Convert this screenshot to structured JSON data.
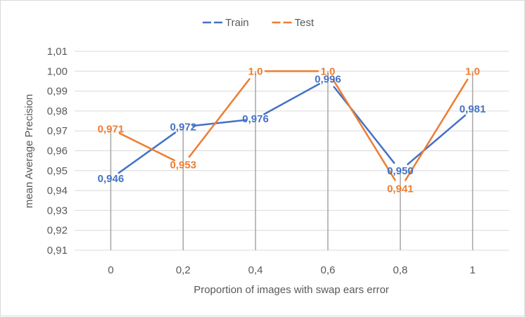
{
  "chart_data": {
    "type": "line",
    "categories": [
      "0",
      "0,2",
      "0,4",
      "0,6",
      "0,8",
      "1"
    ],
    "series": [
      {
        "name": "Train",
        "color": "#4472c4",
        "values": [
          0.946,
          0.972,
          0.976,
          0.996,
          0.95,
          0.981
        ],
        "labels": [
          "0,946",
          "0,972",
          "0,976",
          "0,996",
          "0,950",
          "0,981"
        ]
      },
      {
        "name": "Test",
        "color": "#ed7d31",
        "values": [
          0.971,
          0.953,
          1.0,
          1.0,
          0.941,
          1.0
        ],
        "labels": [
          "0,971",
          "0,953",
          "1,0",
          "1,0",
          "0,941",
          "1,0"
        ]
      }
    ],
    "xlabel": "Proportion of images with swap ears error",
    "ylabel": "mean Average Precision",
    "ylim": [
      0.91,
      1.01
    ],
    "yticks": [
      "0,91",
      "0,92",
      "0,93",
      "0,94",
      "0,95",
      "0,96",
      "0,97",
      "0,98",
      "0,99",
      "1,00",
      "1,01"
    ],
    "grid": true,
    "drop_lines": true,
    "legend": "top-center"
  }
}
